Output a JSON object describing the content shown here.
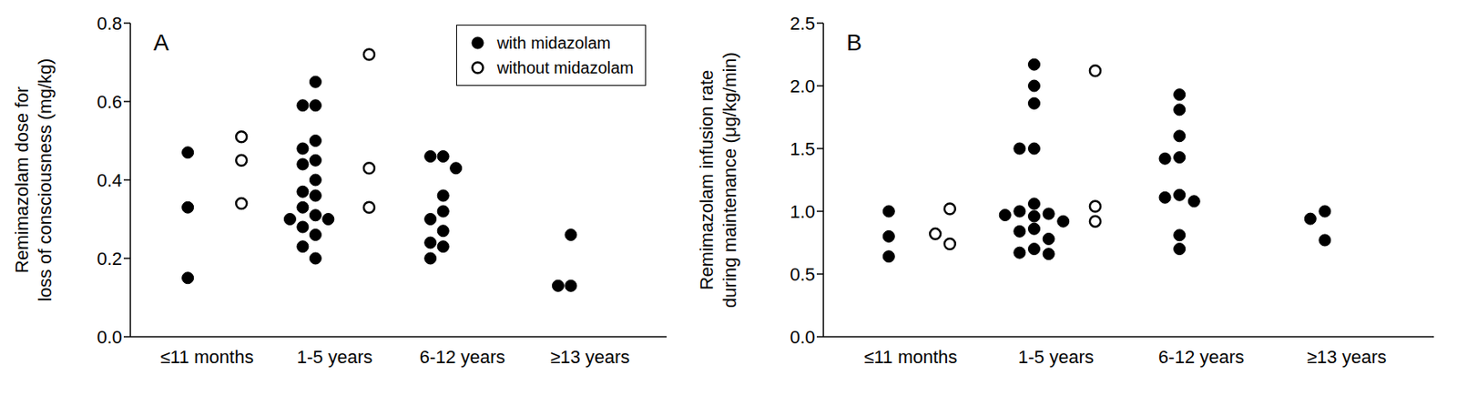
{
  "chart_data": [
    {
      "type": "scatter",
      "annotation": "A",
      "ylabel": [
        "Remimazolam dose for",
        "loss of consciousness (mg/kg)"
      ],
      "categories": [
        "≤11 months",
        "1-5 years",
        "6-12 years",
        "≥13 years"
      ],
      "ylim": [
        0,
        0.8
      ],
      "yticks": [
        {
          "value": 0,
          "label": "0.0"
        },
        {
          "value": 0.2,
          "label": "0.2"
        },
        {
          "value": 0.4,
          "label": "0.4"
        },
        {
          "value": 0.6,
          "label": "0.6"
        },
        {
          "value": 0.8,
          "label": "0.8"
        }
      ],
      "grid": false,
      "legend": "top right",
      "series": [
        {
          "name": "with midazolam",
          "color": "#000000",
          "marker": "filled_circle",
          "values": [
            [
              0.47,
              0.33,
              0.15
            ],
            [
              0.65,
              0.59,
              0.59,
              0.5,
              0.48,
              0.45,
              0.44,
              0.4,
              0.37,
              0.36,
              0.33,
              0.31,
              0.3,
              0.3,
              0.28,
              0.26,
              0.23,
              0.2
            ],
            [
              0.46,
              0.46,
              0.43,
              0.36,
              0.32,
              0.3,
              0.27,
              0.24,
              0.23,
              0.2
            ],
            [
              0.26,
              0.13,
              0.13
            ]
          ]
        },
        {
          "name": "without midazolam",
          "color": "#000000",
          "marker": "open_circle",
          "values": [
            [
              0.51,
              0.45,
              0.34
            ],
            [
              0.72,
              0.43,
              0.33
            ],
            [],
            []
          ]
        }
      ]
    },
    {
      "type": "scatter",
      "annotation": "B",
      "ylabel": [
        "Remimazolam infusion rate",
        "during maintenance (μg/kg/min)"
      ],
      "categories": [
        "≤11 months",
        "1-5 years",
        "6-12 years",
        "≥13 years"
      ],
      "ylim": [
        0,
        2.5
      ],
      "yticks": [
        {
          "value": 0,
          "label": "0.0"
        },
        {
          "value": 0.5,
          "label": "0.5"
        },
        {
          "value": 1,
          "label": "1.0"
        },
        {
          "value": 1.5,
          "label": "1.5"
        },
        {
          "value": 2,
          "label": "2.0"
        },
        {
          "value": 2.5,
          "label": "2.5"
        }
      ],
      "grid": false,
      "series": [
        {
          "name": "with midazolam",
          "color": "#000000",
          "marker": "filled_circle",
          "values": [
            [
              1.0,
              0.8,
              0.64
            ],
            [
              2.17,
              2.0,
              1.86,
              1.5,
              1.5,
              1.06,
              1.0,
              0.98,
              0.97,
              0.96,
              0.92,
              0.86,
              0.84,
              0.78,
              0.7,
              0.67,
              0.66
            ],
            [
              1.93,
              1.81,
              1.6,
              1.43,
              1.42,
              1.13,
              1.11,
              1.08,
              0.81,
              0.7
            ],
            [
              1.0,
              0.94,
              0.77
            ]
          ]
        },
        {
          "name": "without midazolam",
          "color": "#000000",
          "marker": "open_circle",
          "values": [
            [
              1.02,
              0.74,
              0.82
            ],
            [
              2.12,
              1.04,
              0.92
            ],
            [],
            []
          ]
        }
      ]
    }
  ]
}
